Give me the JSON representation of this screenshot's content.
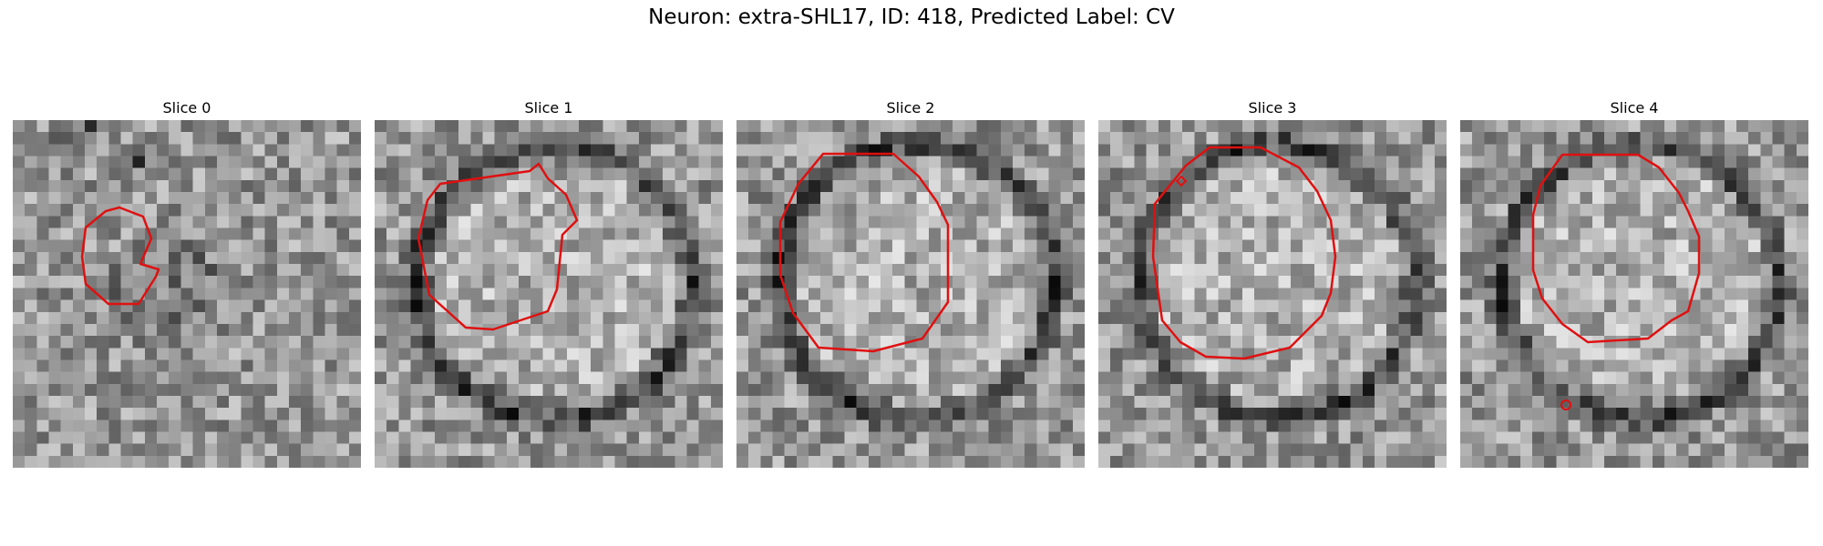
{
  "figure": {
    "title": "Neuron: extra-SHL17, ID: 418, Predicted Label: CV",
    "contour_color": "#e01010"
  },
  "slices": [
    {
      "label": "Slice 0",
      "seed": 11,
      "membrane": "dark",
      "dark_cells": [
        [
          3,
          1
        ],
        [
          4,
          1
        ],
        [
          6,
          0
        ],
        [
          7,
          0
        ],
        [
          8,
          1
        ],
        [
          9,
          2
        ],
        [
          10,
          3
        ]
      ]
    },
    {
      "label": "Slice 1",
      "seed": 23,
      "membrane": "ring"
    },
    {
      "label": "Slice 2",
      "seed": 37,
      "membrane": "ring_bright"
    },
    {
      "label": "Slice 3",
      "seed": 51,
      "membrane": "ring_strong"
    },
    {
      "label": "Slice 4",
      "seed": 67,
      "membrane": "ring_faint"
    }
  ]
}
